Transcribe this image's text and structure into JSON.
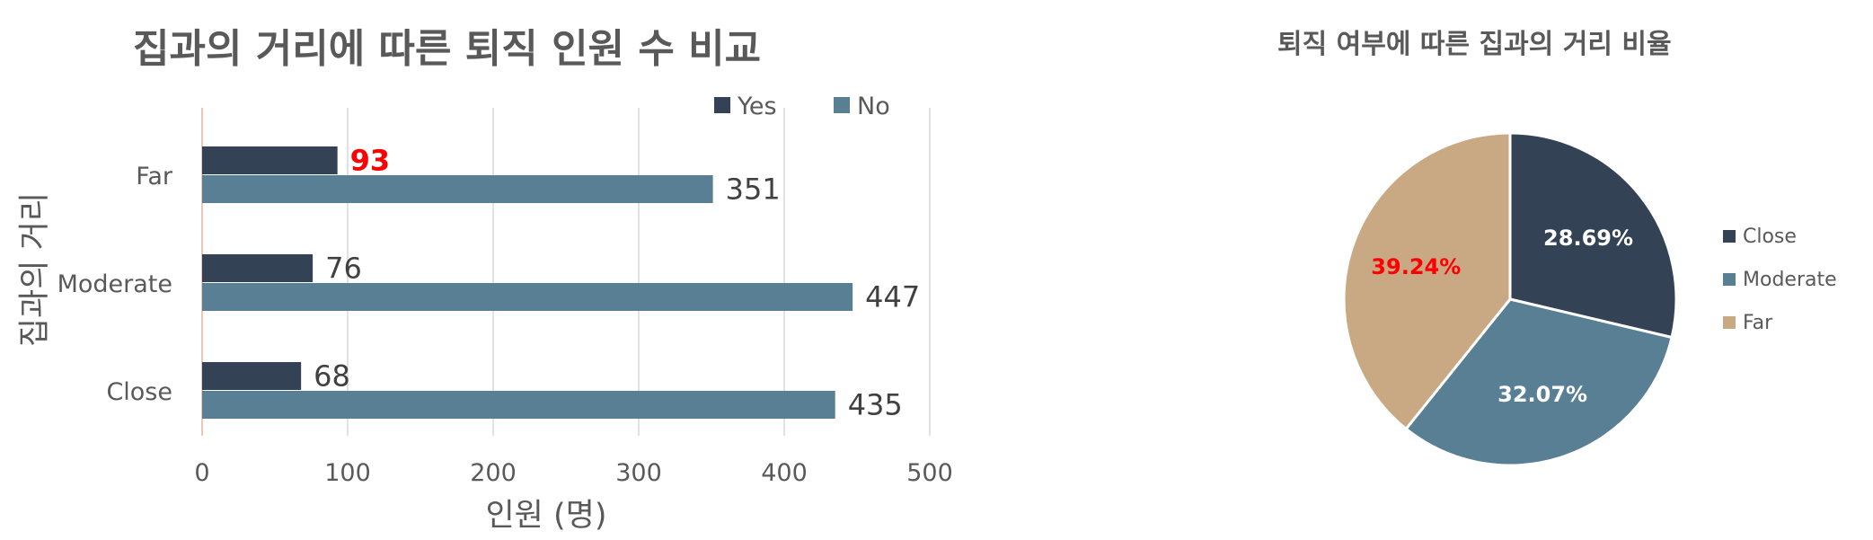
{
  "colors": {
    "yes": "#334255",
    "no": "#587f94",
    "close": "#334255",
    "moderate": "#587f94",
    "far": "#c9a983",
    "highlight": "#ff0000",
    "text": "#595959",
    "grid": "#d9d9d9"
  },
  "chart_data": [
    {
      "type": "bar",
      "orientation": "horizontal",
      "title": "집과의 거리에 따른 퇴직 인원 수 비교",
      "xlabel": "인원 (명)",
      "ylabel": "집과의 거리",
      "categories": [
        "Far",
        "Moderate",
        "Close"
      ],
      "series": [
        {
          "name": "Yes",
          "values": [
            93,
            76,
            68
          ]
        },
        {
          "name": "No",
          "values": [
            351,
            447,
            435
          ]
        }
      ],
      "xlim": [
        0,
        500
      ],
      "xticks": [
        "0",
        "100",
        "200",
        "300",
        "400",
        "500"
      ],
      "grid": true,
      "legend": "top",
      "highlight": {
        "series": "Yes",
        "category": "Far"
      }
    },
    {
      "type": "pie",
      "title": "퇴직 여부에 따른 집과의 거리 비율",
      "labels": [
        "Close",
        "Moderate",
        "Far"
      ],
      "values": [
        28.69,
        32.07,
        39.24
      ],
      "value_labels": [
        "28.69%",
        "32.07%",
        "39.24%"
      ],
      "legend": "right",
      "highlight": "Far"
    }
  ]
}
